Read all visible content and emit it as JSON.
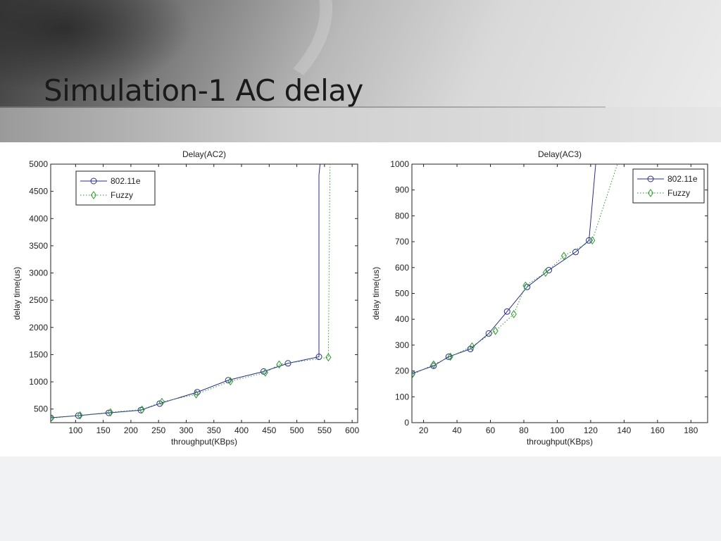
{
  "slide": {
    "title": "Simulation-1 AC delay"
  },
  "chart_data": [
    {
      "type": "line",
      "title": "Delay(AC2)",
      "xlabel": "throughput(KBps)",
      "ylabel": "delay time(us)",
      "xlim": [
        55,
        610
      ],
      "ylim": [
        250,
        5000
      ],
      "xticks": [
        100,
        150,
        200,
        250,
        300,
        350,
        400,
        450,
        500,
        550,
        600
      ],
      "yticks": [
        500,
        1000,
        1500,
        2000,
        2500,
        3000,
        3500,
        4000,
        4500,
        5000
      ],
      "grid": false,
      "legend": "top-left",
      "series": [
        {
          "name": "802.11e",
          "color": "#2b2b8e",
          "style": "solid",
          "marker": "circle",
          "x": [
            55,
            105,
            160,
            218,
            252,
            320,
            376,
            440,
            484,
            540
          ],
          "y": [
            340,
            380,
            430,
            480,
            600,
            810,
            1030,
            1190,
            1340,
            1460
          ],
          "x_extended": [
            55,
            105,
            160,
            218,
            252,
            320,
            376,
            440,
            484,
            540,
            540,
            542
          ],
          "y_extended": [
            340,
            380,
            430,
            480,
            600,
            810,
            1030,
            1190,
            1340,
            1460,
            4800,
            5000
          ]
        },
        {
          "name": "Fuzzy",
          "color": "#2e9a2e",
          "style": "dotted",
          "marker": "diamond",
          "x": [
            55,
            108,
            163,
            220,
            256,
            318,
            380,
            443,
            468,
            557
          ],
          "y": [
            330,
            385,
            440,
            490,
            630,
            770,
            1010,
            1170,
            1320,
            1450
          ],
          "x_extended": [
            55,
            108,
            163,
            220,
            256,
            318,
            380,
            443,
            468,
            557,
            560
          ],
          "y_extended": [
            330,
            385,
            440,
            490,
            630,
            770,
            1010,
            1170,
            1320,
            1450,
            5000
          ]
        }
      ]
    },
    {
      "type": "line",
      "title": "Delay(AC3)",
      "xlabel": "throughput(KBps)",
      "ylabel": "delay time(us)",
      "xlim": [
        13,
        190
      ],
      "ylim": [
        0,
        1000
      ],
      "xticks": [
        20,
        40,
        60,
        80,
        100,
        120,
        140,
        160,
        180
      ],
      "yticks": [
        0,
        100,
        200,
        300,
        400,
        500,
        600,
        700,
        800,
        900,
        1000
      ],
      "grid": false,
      "legend": "top-right",
      "series": [
        {
          "name": "802.11e",
          "color": "#2b2b8e",
          "style": "solid",
          "marker": "circle",
          "x": [
            13,
            26,
            35,
            48,
            59,
            70,
            82,
            95,
            111,
            119
          ],
          "y": [
            190,
            220,
            255,
            285,
            345,
            430,
            525,
            590,
            660,
            705
          ],
          "x_extended": [
            13,
            26,
            35,
            48,
            59,
            70,
            82,
            95,
            111,
            119,
            123
          ],
          "y_extended": [
            190,
            220,
            255,
            285,
            345,
            430,
            525,
            590,
            660,
            705,
            1000
          ]
        },
        {
          "name": "Fuzzy",
          "color": "#2e9a2e",
          "style": "dotted",
          "marker": "diamond",
          "x": [
            13,
            26,
            36,
            49,
            63,
            74,
            81,
            93,
            104,
            121
          ],
          "y": [
            185,
            225,
            255,
            295,
            355,
            420,
            530,
            580,
            645,
            705
          ],
          "x_extended": [
            13,
            26,
            36,
            49,
            63,
            74,
            81,
            93,
            104,
            121,
            136
          ],
          "y_extended": [
            185,
            225,
            255,
            295,
            355,
            420,
            530,
            580,
            645,
            705,
            1000
          ]
        }
      ]
    }
  ]
}
